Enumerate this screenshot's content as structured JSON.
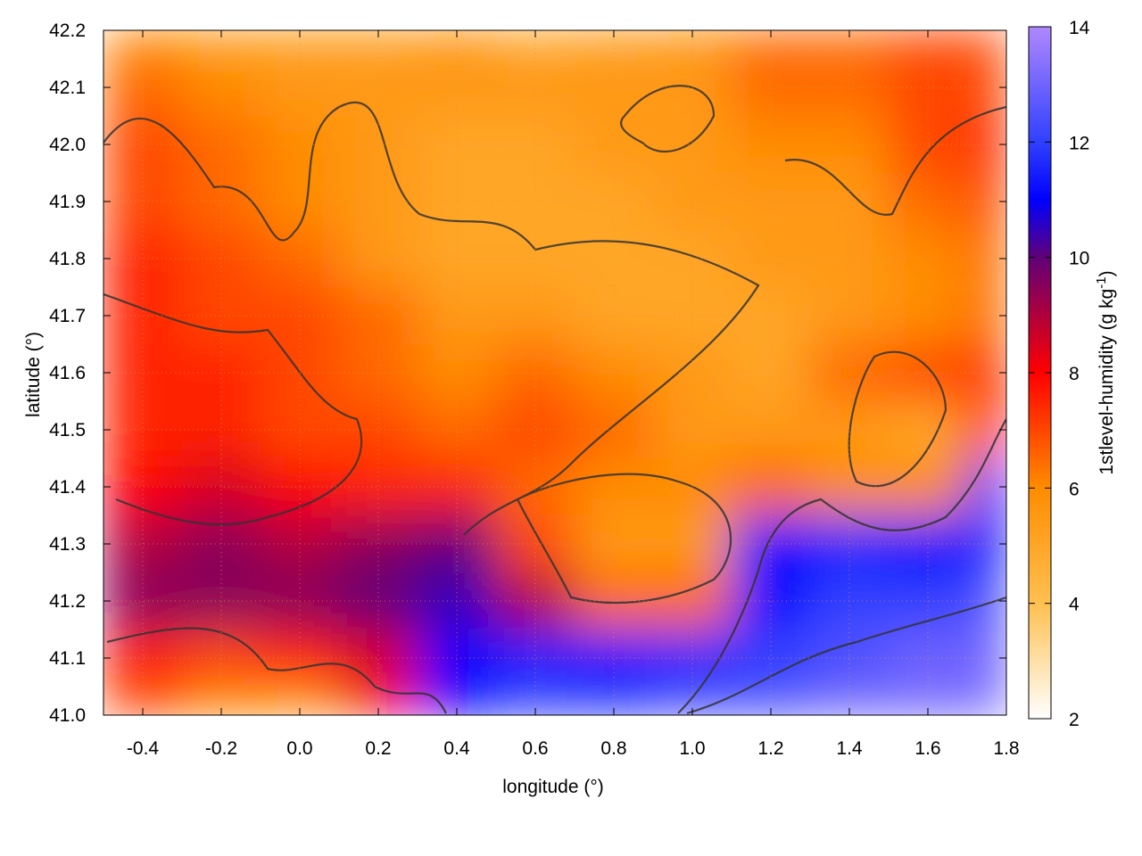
{
  "chart_data": {
    "type": "heatmap",
    "title": "",
    "xlabel": "longitude (°)",
    "ylabel": "latitude (°)",
    "colorbar_label": "1stlevel-humidity (g kg",
    "colorbar_label_sup": "-1",
    "colorbar_label_end": ")",
    "xlim": [
      -0.5,
      1.8
    ],
    "ylim": [
      41.0,
      42.2
    ],
    "clim": [
      2,
      14
    ],
    "grid": true,
    "xticks": [
      "-0.4",
      "-0.2",
      "0.0",
      "0.2",
      "0.4",
      "0.6",
      "0.8",
      "1.0",
      "1.2",
      "1.4",
      "1.6",
      "1.8"
    ],
    "yticks": [
      "41.0",
      "41.1",
      "41.2",
      "41.3",
      "41.4",
      "41.5",
      "41.6",
      "41.7",
      "41.8",
      "41.9",
      "42.0",
      "42.1",
      "42.2"
    ],
    "cticks": [
      "2",
      "4",
      "6",
      "8",
      "10",
      "12",
      "14"
    ],
    "colormap": [
      {
        "v": 2,
        "c": "#ffffff"
      },
      {
        "v": 4,
        "c": "#ffc050"
      },
      {
        "v": 6,
        "c": "#ff8c00"
      },
      {
        "v": 8,
        "c": "#ff0000"
      },
      {
        "v": 10,
        "c": "#600078"
      },
      {
        "v": 11,
        "c": "#0000ff"
      },
      {
        "v": 12,
        "c": "#3040ff"
      },
      {
        "v": 14,
        "c": "#b088ff"
      }
    ],
    "lon": [
      -0.4,
      -0.2,
      0.0,
      0.2,
      0.4,
      0.6,
      0.8,
      1.0,
      1.2,
      1.4,
      1.6,
      1.8
    ],
    "lat": [
      42.2,
      42.1,
      42.0,
      41.9,
      41.8,
      41.7,
      41.6,
      41.5,
      41.4,
      41.3,
      41.2,
      41.1,
      41.0
    ],
    "values": [
      [
        6,
        5.5,
        5.5,
        5.5,
        6,
        5,
        5.5,
        6,
        6.5,
        6.5,
        7,
        7
      ],
      [
        6.5,
        6,
        5.5,
        5.5,
        5.5,
        5.5,
        5.5,
        5.5,
        6.5,
        6.5,
        7,
        7
      ],
      [
        7,
        6.5,
        6,
        5.5,
        5,
        5,
        5.5,
        5.5,
        6,
        6,
        7,
        7.5
      ],
      [
        7,
        6.5,
        6,
        5.5,
        5,
        5,
        5,
        5.5,
        5.5,
        5.5,
        6.5,
        7
      ],
      [
        7.5,
        7,
        6.5,
        5.5,
        5,
        5,
        5,
        5,
        5.5,
        5.5,
        6,
        6.5
      ],
      [
        7.5,
        7,
        7,
        6.5,
        5.5,
        5.5,
        5,
        5,
        5,
        5.5,
        6,
        6.5
      ],
      [
        7.5,
        7.5,
        7,
        6.5,
        6,
        6.5,
        6,
        5.5,
        5,
        6.5,
        7,
        7.5
      ],
      [
        7.5,
        7.5,
        7,
        7,
        6.5,
        7,
        6.5,
        5.5,
        5.5,
        5.5,
        5,
        8
      ],
      [
        8,
        8.5,
        8,
        7.5,
        7.5,
        6.5,
        6,
        6,
        6.5,
        6,
        6,
        11
      ],
      [
        9,
        9.5,
        9,
        9.5,
        10,
        7,
        5.5,
        5.5,
        11,
        11.5,
        11,
        11.5
      ],
      [
        9.5,
        9.5,
        9.5,
        10,
        10.5,
        9,
        6.5,
        6.5,
        11,
        12,
        12,
        12.5
      ],
      [
        7.5,
        7,
        7.5,
        8.5,
        11,
        11.5,
        11,
        11.5,
        12,
        12.5,
        13,
        13
      ],
      [
        7,
        6,
        5.5,
        8,
        11,
        12,
        12,
        12.5,
        12.5,
        13,
        13,
        13
      ]
    ]
  }
}
